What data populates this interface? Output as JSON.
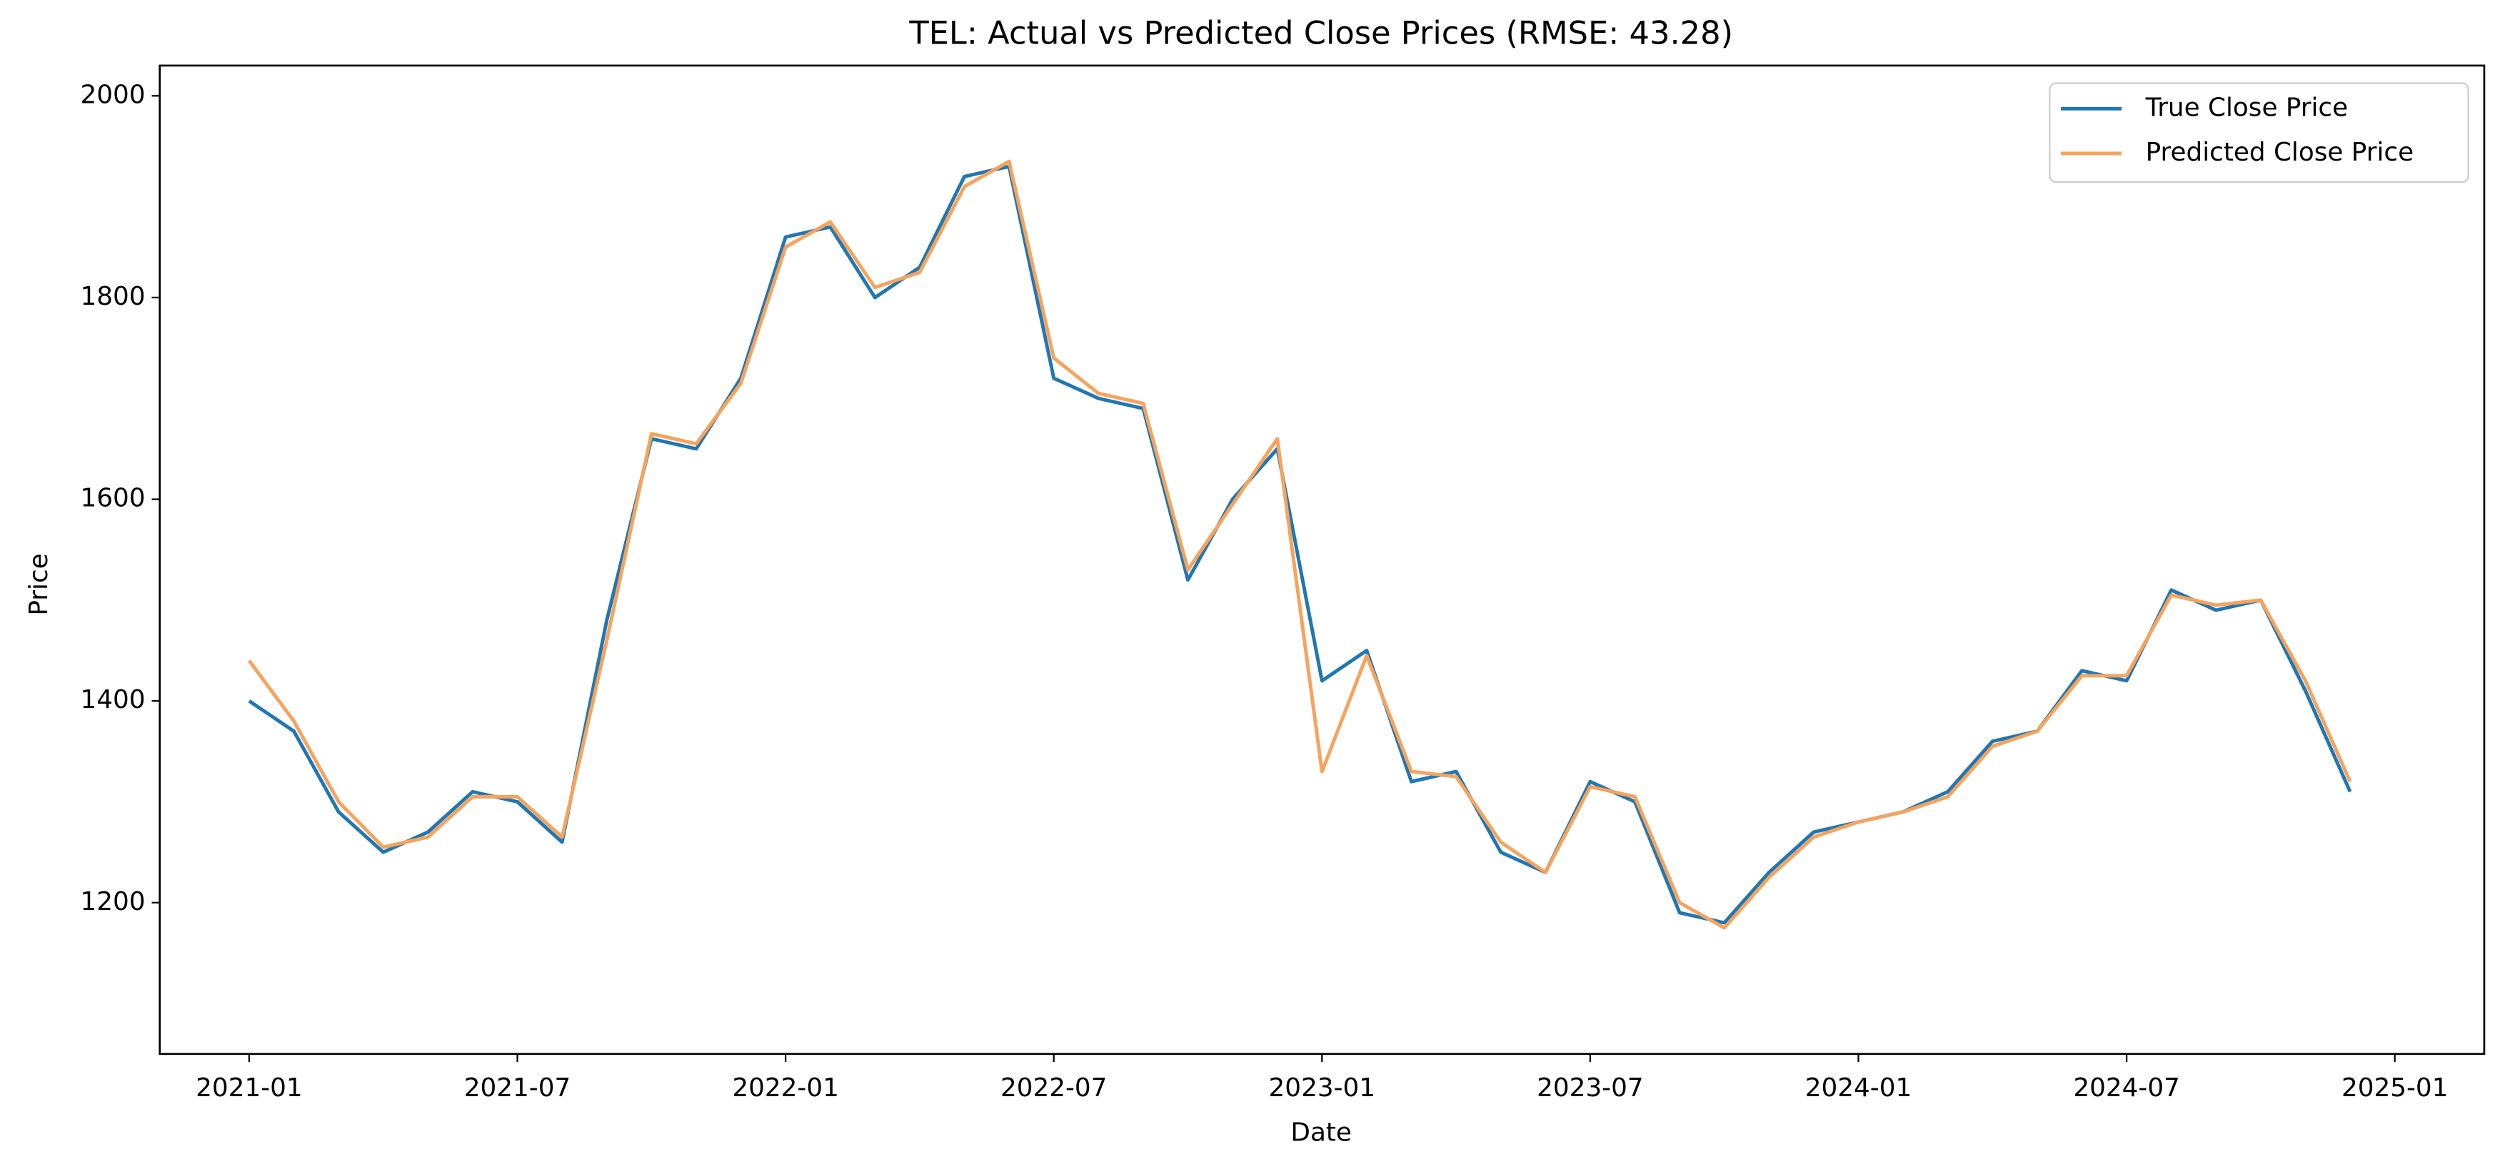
{
  "chart_data": {
    "type": "line",
    "title": "TEL: Actual vs Predicted Close Prices (RMSE: 43.28)",
    "x_label": "Date",
    "y_label": "Price",
    "x": [
      "2021-01",
      "2021-02",
      "2021-03",
      "2021-04",
      "2021-05",
      "2021-06",
      "2021-07",
      "2021-08",
      "2021-09",
      "2021-10",
      "2021-11",
      "2021-12",
      "2022-01",
      "2022-02",
      "2022-03",
      "2022-04",
      "2022-05",
      "2022-06",
      "2022-07",
      "2022-08",
      "2022-09",
      "2022-10",
      "2022-11",
      "2022-12",
      "2023-01",
      "2023-02",
      "2023-03",
      "2023-04",
      "2023-05",
      "2023-06",
      "2023-07",
      "2023-08",
      "2023-09",
      "2023-10",
      "2023-11",
      "2023-12",
      "2024-01",
      "2024-02",
      "2024-03",
      "2024-04",
      "2024-05",
      "2024-06",
      "2024-07",
      "2024-08",
      "2024-09",
      "2024-10",
      "2024-11",
      "2024-12"
    ],
    "series": [
      {
        "name": "True Close Price",
        "color": "#1f77b4",
        "values": [
          1400,
          1370,
          1290,
          1250,
          1270,
          1310,
          1300,
          1260,
          1480,
          1660,
          1650,
          1720,
          1860,
          1870,
          1800,
          1830,
          1920,
          1930,
          1720,
          1700,
          1690,
          1520,
          1600,
          1650,
          1420,
          1450,
          1320,
          1330,
          1250,
          1230,
          1320,
          1300,
          1190,
          1180,
          1230,
          1270,
          1280,
          1290,
          1310,
          1360,
          1370,
          1430,
          1420,
          1510,
          1490,
          1500,
          1410,
          1310
        ]
      },
      {
        "name": "Predicted Close Price",
        "color": "#f7a35c",
        "values": [
          1440,
          1380,
          1300,
          1255,
          1265,
          1305,
          1305,
          1265,
          1460,
          1665,
          1655,
          1715,
          1850,
          1875,
          1810,
          1825,
          1910,
          1935,
          1740,
          1705,
          1695,
          1530,
          1595,
          1660,
          1330,
          1445,
          1330,
          1325,
          1260,
          1230,
          1315,
          1305,
          1200,
          1175,
          1225,
          1265,
          1280,
          1290,
          1305,
          1355,
          1370,
          1425,
          1425,
          1505,
          1495,
          1500,
          1420,
          1320
        ]
      }
    ],
    "xlim": [
      "2020-11",
      "2025-03"
    ],
    "xticks": [
      "2021-01",
      "2021-07",
      "2022-01",
      "2022-07",
      "2023-01",
      "2023-07",
      "2024-01",
      "2024-07",
      "2025-01"
    ],
    "ylim": [
      1050,
      2030
    ],
    "yticks": [
      1200,
      1400,
      1600,
      1800,
      2000
    ],
    "grid": false,
    "legend": "upper right"
  }
}
